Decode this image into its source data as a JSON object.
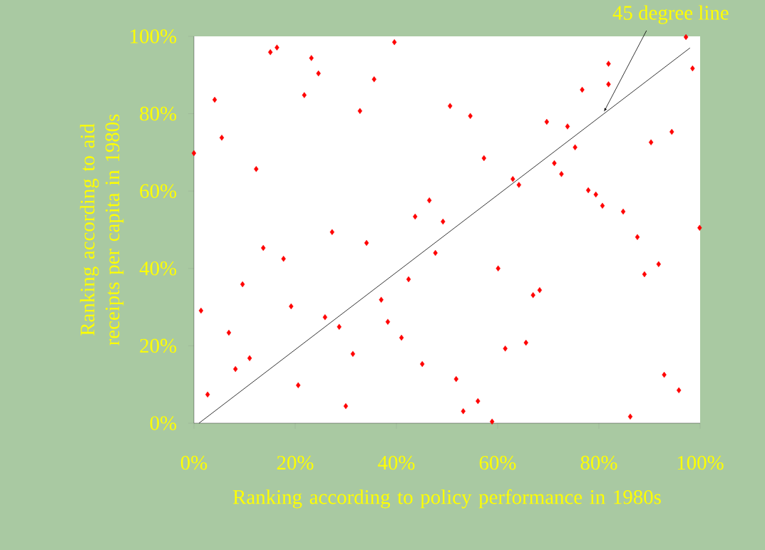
{
  "chart_data": {
    "type": "scatter",
    "xlabel": "Ranking according to policy performance in 1980s",
    "ylabel": "Ranking according to aid receipts per capita in 1980s",
    "annotations": [
      {
        "text": "45 degree line",
        "x": 81,
        "y": 80.5
      }
    ],
    "xlim": [
      0,
      100
    ],
    "ylim": [
      0,
      100
    ],
    "xticks": [
      {
        "value": 0,
        "label": "0%"
      },
      {
        "value": 20,
        "label": "20%"
      },
      {
        "value": 40,
        "label": "40%"
      },
      {
        "value": 60,
        "label": "60%"
      },
      {
        "value": 80,
        "label": "80%"
      },
      {
        "value": 100,
        "label": "100%"
      }
    ],
    "yticks": [
      {
        "value": 0,
        "label": "0%"
      },
      {
        "value": 20,
        "label": "20%"
      },
      {
        "value": 40,
        "label": "40%"
      },
      {
        "value": 60,
        "label": "60%"
      },
      {
        "value": 80,
        "label": "80%"
      },
      {
        "value": 100,
        "label": "100%"
      }
    ],
    "series": [
      {
        "type": "scatter",
        "color": "#ff0000",
        "marker": "diamond",
        "x": [
          0,
          1.4,
          2.7,
          4.1,
          5.5,
          6.9,
          8.2,
          9.6,
          11.0,
          12.3,
          13.7,
          15.1,
          16.4,
          17.7,
          19.2,
          20.6,
          21.8,
          23.2,
          24.6,
          25.9,
          27.3,
          28.7,
          30.0,
          31.4,
          32.8,
          34.1,
          35.6,
          37.0,
          38.3,
          39.6,
          41.0,
          42.4,
          43.7,
          45.1,
          46.5,
          47.7,
          49.2,
          50.6,
          51.8,
          53.2,
          54.6,
          56.1,
          57.3,
          58.9,
          60.1,
          61.5,
          63.0,
          64.2,
          65.6,
          67.0,
          68.3,
          69.7,
          71.2,
          72.6,
          73.8,
          75.3,
          76.7,
          77.9,
          79.4,
          80.7,
          81.9,
          81.9,
          84.8,
          86.2,
          87.6,
          89.0,
          90.3,
          91.8,
          92.9,
          94.4,
          95.8,
          97.2,
          98.5,
          99.9
        ],
        "values": [
          69.8,
          29.1,
          7.4,
          83.6,
          73.8,
          23.4,
          14.0,
          35.9,
          16.8,
          65.7,
          45.3,
          95.9,
          97.1,
          42.5,
          30.2,
          9.8,
          84.8,
          94.4,
          90.4,
          27.4,
          49.4,
          24.9,
          4.4,
          17.9,
          80.7,
          46.6,
          88.9,
          31.9,
          26.2,
          98.5,
          22.1,
          37.2,
          53.4,
          15.3,
          57.6,
          44.0,
          52.1,
          82.0,
          11.4,
          3.1,
          79.4,
          5.7,
          68.5,
          0.4,
          40.0,
          19.3,
          63.1,
          61.6,
          20.8,
          33.1,
          34.4,
          77.9,
          67.2,
          64.4,
          76.7,
          71.3,
          86.2,
          60.2,
          59.1,
          56.2,
          87.6,
          92.9,
          54.7,
          1.7,
          48.1,
          38.5,
          72.6,
          41.1,
          12.5,
          75.3,
          8.5,
          99.8,
          91.7,
          50.5
        ]
      },
      {
        "type": "line",
        "color": "#000000",
        "marker": "none",
        "line_style": "solid",
        "x": [
          1,
          98
        ],
        "values": [
          0,
          97
        ]
      }
    ]
  }
}
